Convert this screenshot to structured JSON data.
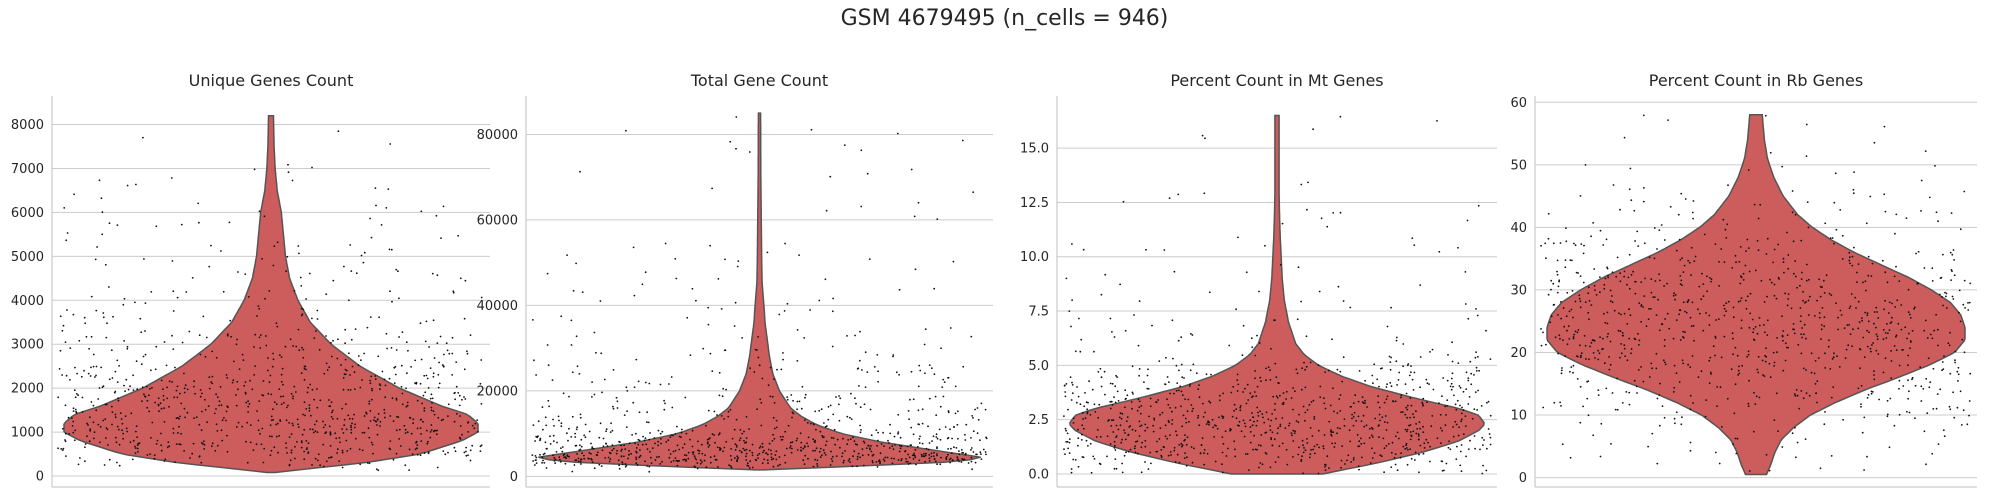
{
  "figure": {
    "suptitle": "GSM 4679495 (n_cells = 946)",
    "background": "#ffffff",
    "violin_color": "#cd5c5c",
    "point_color": "#111111"
  },
  "chart_data": [
    {
      "type": "violin",
      "title": "Unique Genes Count",
      "xlabel": "",
      "ylabel": "",
      "ylim": [
        -250,
        8650
      ],
      "yticks": [
        0,
        1000,
        2000,
        3000,
        4000,
        5000,
        6000,
        7000,
        8000
      ],
      "yticklabels": [
        "0",
        "1000",
        "2000",
        "3000",
        "4000",
        "5000",
        "6000",
        "7000",
        "8000"
      ],
      "grid": true,
      "n_points": 946,
      "point_range": [
        80,
        7850
      ],
      "point_mode": 1200,
      "violin_profile": [
        [
          80,
          0.02
        ],
        [
          150,
          0.15
        ],
        [
          300,
          0.45
        ],
        [
          500,
          0.72
        ],
        [
          800,
          0.92
        ],
        [
          1000,
          1.0
        ],
        [
          1200,
          1.0
        ],
        [
          1400,
          0.95
        ],
        [
          1600,
          0.82
        ],
        [
          2000,
          0.62
        ],
        [
          2500,
          0.43
        ],
        [
          3000,
          0.29
        ],
        [
          3500,
          0.19
        ],
        [
          4000,
          0.13
        ],
        [
          4500,
          0.09
        ],
        [
          5000,
          0.07
        ],
        [
          5500,
          0.06
        ],
        [
          6000,
          0.05
        ],
        [
          6500,
          0.03
        ],
        [
          7000,
          0.02
        ],
        [
          7500,
          0.015
        ],
        [
          8200,
          0.012
        ]
      ]
    },
    {
      "type": "violin",
      "title": "Total Gene Count",
      "xlabel": "",
      "ylabel": "",
      "ylim": [
        -2500,
        89000
      ],
      "yticks": [
        0,
        20000,
        40000,
        60000,
        80000
      ],
      "yticklabels": [
        "0",
        "20000",
        "40000",
        "60000",
        "80000"
      ],
      "grid": true,
      "n_points": 946,
      "point_range": [
        1000,
        84500
      ],
      "point_mode": 4000,
      "violin_profile": [
        [
          1500,
          0.02
        ],
        [
          2500,
          0.5
        ],
        [
          3500,
          0.92
        ],
        [
          4500,
          1.0
        ],
        [
          6000,
          0.8
        ],
        [
          8000,
          0.55
        ],
        [
          10000,
          0.37
        ],
        [
          12000,
          0.26
        ],
        [
          14000,
          0.19
        ],
        [
          16000,
          0.14
        ],
        [
          20000,
          0.09
        ],
        [
          24000,
          0.06
        ],
        [
          28000,
          0.045
        ],
        [
          32000,
          0.035
        ],
        [
          36000,
          0.025
        ],
        [
          40000,
          0.02
        ],
        [
          45000,
          0.012
        ],
        [
          50000,
          0.01
        ],
        [
          60000,
          0.008
        ],
        [
          70000,
          0.006
        ],
        [
          85000,
          0.005
        ]
      ]
    },
    {
      "type": "violin",
      "title": "Percent Count in Mt Genes",
      "xlabel": "",
      "ylabel": "",
      "ylim": [
        -0.6,
        17.4
      ],
      "yticks": [
        0.0,
        2.5,
        5.0,
        7.5,
        10.0,
        12.5,
        15.0
      ],
      "yticklabels": [
        "0.0",
        "2.5",
        "5.0",
        "7.5",
        "10.0",
        "12.5",
        "15.0"
      ],
      "grid": true,
      "n_points": 946,
      "point_range": [
        0.02,
        16.5
      ],
      "point_mode": 2.3,
      "violin_profile": [
        [
          0.0,
          0.22
        ],
        [
          0.5,
          0.48
        ],
        [
          1.0,
          0.7
        ],
        [
          1.5,
          0.87
        ],
        [
          2.0,
          0.97
        ],
        [
          2.3,
          1.0
        ],
        [
          2.7,
          0.97
        ],
        [
          3.0,
          0.88
        ],
        [
          3.5,
          0.66
        ],
        [
          4.0,
          0.46
        ],
        [
          4.5,
          0.31
        ],
        [
          5.0,
          0.2
        ],
        [
          5.5,
          0.13
        ],
        [
          6.0,
          0.09
        ],
        [
          7.0,
          0.055
        ],
        [
          8.0,
          0.035
        ],
        [
          9.0,
          0.025
        ],
        [
          10.0,
          0.02
        ],
        [
          11.0,
          0.015
        ],
        [
          12.0,
          0.012
        ],
        [
          13.0,
          0.01
        ],
        [
          15.0,
          0.01
        ],
        [
          16.5,
          0.01
        ]
      ]
    },
    {
      "type": "violin",
      "title": "Percent Count in Rb Genes",
      "xlabel": "",
      "ylabel": "",
      "ylim": [
        -1.5,
        61
      ],
      "yticks": [
        0,
        10,
        20,
        30,
        40,
        50,
        60
      ],
      "yticklabels": [
        "0",
        "10",
        "20",
        "30",
        "40",
        "50",
        "60"
      ],
      "grid": true,
      "n_points": 946,
      "point_range": [
        0.5,
        58
      ],
      "point_mode": 24,
      "violin_profile": [
        [
          0.5,
          0.05
        ],
        [
          2,
          0.07
        ],
        [
          4,
          0.09
        ],
        [
          6,
          0.12
        ],
        [
          8,
          0.18
        ],
        [
          10,
          0.26
        ],
        [
          12,
          0.38
        ],
        [
          14,
          0.52
        ],
        [
          16,
          0.68
        ],
        [
          18,
          0.83
        ],
        [
          20,
          0.95
        ],
        [
          22,
          1.0
        ],
        [
          24,
          1.0
        ],
        [
          26,
          0.98
        ],
        [
          28,
          0.93
        ],
        [
          30,
          0.84
        ],
        [
          32,
          0.73
        ],
        [
          34,
          0.6
        ],
        [
          36,
          0.47
        ],
        [
          38,
          0.36
        ],
        [
          40,
          0.27
        ],
        [
          42,
          0.2
        ],
        [
          45,
          0.13
        ],
        [
          48,
          0.085
        ],
        [
          51,
          0.055
        ],
        [
          54,
          0.04
        ],
        [
          58,
          0.03
        ]
      ]
    }
  ]
}
